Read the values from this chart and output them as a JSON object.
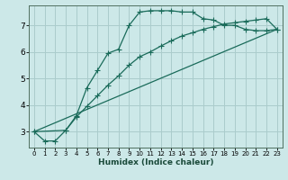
{
  "xlabel": "Humidex (Indice chaleur)",
  "bg_color": "#cce8e8",
  "grid_color": "#aacccc",
  "line_color": "#1a6b5a",
  "spine_color": "#507060",
  "xlim": [
    -0.5,
    23.5
  ],
  "ylim": [
    2.4,
    7.75
  ],
  "xticks": [
    0,
    1,
    2,
    3,
    4,
    5,
    6,
    7,
    8,
    9,
    10,
    11,
    12,
    13,
    14,
    15,
    16,
    17,
    18,
    19,
    20,
    21,
    22,
    23
  ],
  "yticks": [
    3,
    4,
    5,
    6,
    7
  ],
  "line1_x": [
    0,
    1,
    2,
    3,
    4,
    5,
    6,
    7,
    8,
    9,
    10,
    11,
    12,
    13,
    14,
    15,
    16,
    17,
    18,
    19,
    20,
    21,
    22,
    23
  ],
  "line1_y": [
    3.0,
    2.65,
    2.65,
    3.05,
    3.6,
    4.65,
    5.3,
    5.95,
    6.1,
    7.0,
    7.5,
    7.55,
    7.55,
    7.55,
    7.5,
    7.5,
    7.25,
    7.2,
    7.0,
    7.0,
    6.85,
    6.8,
    6.8,
    6.85
  ],
  "line2_x": [
    0,
    3,
    4,
    5,
    6,
    7,
    8,
    9,
    10,
    11,
    12,
    13,
    14,
    15,
    16,
    17,
    18,
    19,
    20,
    21,
    22,
    23
  ],
  "line2_y": [
    3.0,
    3.05,
    3.55,
    3.95,
    4.35,
    4.75,
    5.1,
    5.5,
    5.82,
    6.0,
    6.22,
    6.42,
    6.6,
    6.72,
    6.85,
    6.95,
    7.05,
    7.1,
    7.15,
    7.2,
    7.25,
    6.85
  ],
  "line3_x": [
    0,
    23
  ],
  "line3_y": [
    3.0,
    6.85
  ],
  "xlabel_fontsize": 6.5,
  "xlabel_fontweight": "bold",
  "xlabel_color": "#1a4a3a",
  "tick_fontsize_x": 5.0,
  "tick_fontsize_y": 6.5,
  "marker_size": 2.2,
  "line_width": 0.9
}
